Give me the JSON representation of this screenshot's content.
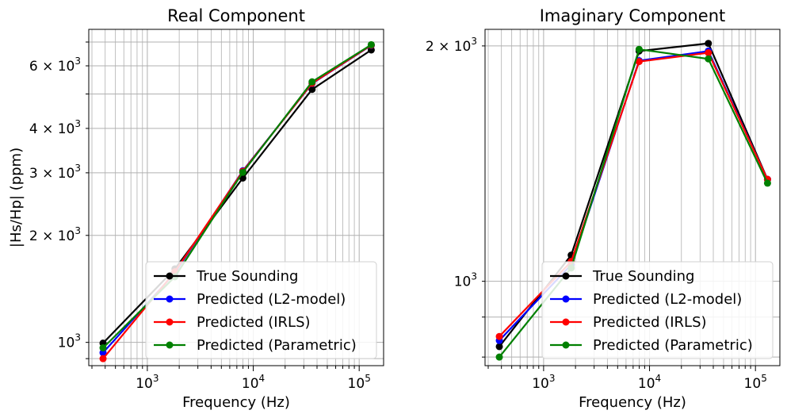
{
  "chart_data": [
    {
      "type": "line",
      "title": "Real Component",
      "xlabel": "Frequency (Hz)",
      "ylabel": "|Hs/Hp| (ppm)",
      "xscale": "log",
      "yscale": "log",
      "xlim": [
        280,
        170000
      ],
      "ylim": [
        860,
        7600
      ],
      "grid": true,
      "legend_position": "lower-right",
      "x": [
        382,
        1822,
        7970,
        35920,
        130000
      ],
      "x_ticks": [
        {
          "value": 1000,
          "label": "10",
          "exp": "3"
        },
        {
          "value": 10000,
          "label": "10",
          "exp": "4"
        },
        {
          "value": 100000,
          "label": "10",
          "exp": "5"
        }
      ],
      "y_ticks": [
        {
          "value": 1000,
          "label": "10",
          "exp": "3",
          "mult": ""
        },
        {
          "value": 2000,
          "label": "10",
          "exp": "3",
          "mult": "2 × "
        },
        {
          "value": 3000,
          "label": "10",
          "exp": "3",
          "mult": "3 × "
        },
        {
          "value": 4000,
          "label": "10",
          "exp": "3",
          "mult": "4 × "
        },
        {
          "value": 6000,
          "label": "10",
          "exp": "3",
          "mult": "6 × "
        }
      ],
      "series": [
        {
          "name": "True Sounding",
          "color": "#000000",
          "values": [
            995,
            1610,
            2900,
            5150,
            6650
          ]
        },
        {
          "name": "Predicted (L2-model)",
          "color": "#0000ff",
          "values": [
            935,
            1570,
            3040,
            5350,
            6850
          ]
        },
        {
          "name": "Predicted (IRLS)",
          "color": "#ff0000",
          "values": [
            900,
            1580,
            3030,
            5360,
            6860
          ]
        },
        {
          "name": "Predicted (Parametric)",
          "color": "#008000",
          "values": [
            965,
            1530,
            3010,
            5410,
            6880
          ]
        }
      ]
    },
    {
      "type": "line",
      "title": "Imaginary Component",
      "xlabel": "Frequency (Hz)",
      "ylabel": "",
      "xscale": "log",
      "yscale": "log",
      "xlim": [
        280,
        170000
      ],
      "ylim": [
        780,
        2100
      ],
      "grid": true,
      "legend_position": "lower-right",
      "x": [
        382,
        1822,
        7970,
        35920,
        130000
      ],
      "x_ticks": [
        {
          "value": 1000,
          "label": "10",
          "exp": "3"
        },
        {
          "value": 10000,
          "label": "10",
          "exp": "4"
        },
        {
          "value": 100000,
          "label": "10",
          "exp": "5"
        }
      ],
      "y_ticks": [
        {
          "value": 1000,
          "label": "10",
          "exp": "3",
          "mult": ""
        },
        {
          "value": 2000,
          "label": "10",
          "exp": "3",
          "mult": "2 × "
        }
      ],
      "series": [
        {
          "name": "True Sounding",
          "color": "#000000",
          "values": [
            825,
            1080,
            1970,
            2015,
            1350
          ]
        },
        {
          "name": "Predicted (L2-model)",
          "color": "#0000ff",
          "values": [
            840,
            1050,
            1915,
            1970,
            1350
          ]
        },
        {
          "name": "Predicted (IRLS)",
          "color": "#ff0000",
          "values": [
            850,
            1060,
            1910,
            1960,
            1350
          ]
        },
        {
          "name": "Predicted (Parametric)",
          "color": "#008000",
          "values": [
            800,
            1040,
            1980,
            1925,
            1335
          ]
        }
      ]
    }
  ]
}
